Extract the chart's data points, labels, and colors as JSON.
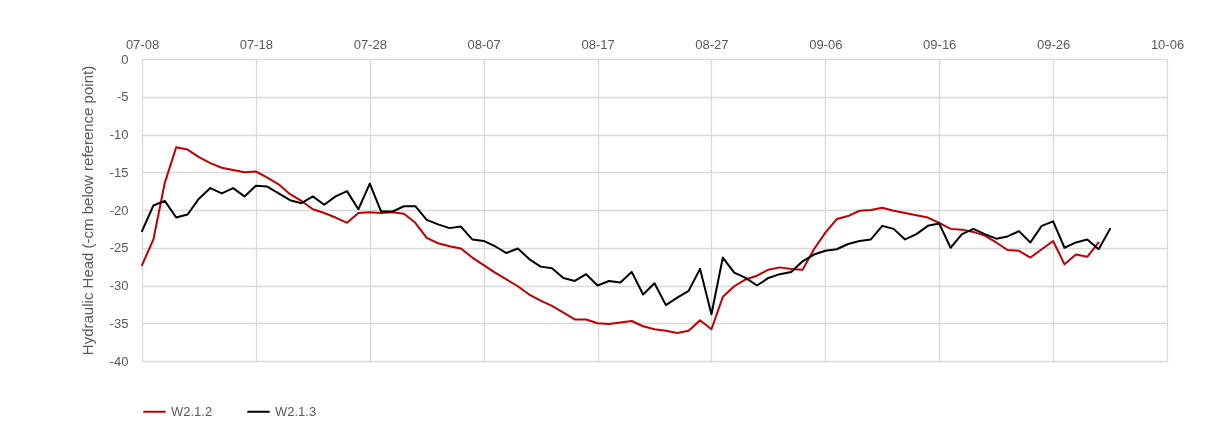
{
  "chart_data": {
    "type": "line",
    "ylabel": "Hydraulic Head (-cm below reference point)",
    "x": [
      "--07-08",
      "--07-09",
      "--07-10",
      "--07-11",
      "--07-12",
      "--07-13",
      "--07-14",
      "--07-15",
      "--07-16",
      "--07-17",
      "--07-18",
      "--07-19",
      "--07-20",
      "--07-21",
      "--07-22",
      "--07-23",
      "--07-24",
      "--07-25",
      "--07-26",
      "--07-27",
      "--07-28",
      "--07-29",
      "--07-30",
      "--07-31",
      "--08-01",
      "--08-02",
      "--08-03",
      "--08-04",
      "--08-05",
      "--08-06",
      "--08-07",
      "--08-08",
      "--08-09",
      "--08-10",
      "--08-11",
      "--08-12",
      "--08-13",
      "--08-14",
      "--08-15",
      "--08-16",
      "--08-17",
      "--08-18",
      "--08-19",
      "--08-20",
      "--08-21",
      "--08-22",
      "--08-23",
      "--08-24",
      "--08-25",
      "--08-26",
      "--08-27",
      "--08-28",
      "--08-29",
      "--08-30",
      "--08-31",
      "--09-01",
      "--09-02",
      "--09-03",
      "--09-04",
      "--09-05",
      "--09-06",
      "--09-07",
      "--09-08",
      "--09-09",
      "--09-10",
      "--09-11",
      "--09-12",
      "--09-13",
      "--09-14",
      "--09-15",
      "--09-16",
      "--09-17",
      "--09-18",
      "--09-19",
      "--09-20",
      "--09-21",
      "--09-22",
      "--09-23",
      "--09-24",
      "--09-25",
      "--09-26",
      "--09-27",
      "--09-28",
      "--09-29",
      "--09-30",
      "--10-01"
    ],
    "series": [
      {
        "name": "W2.1.2",
        "color": "#c00000",
        "values": [
          -27.3,
          -23.9,
          -16.4,
          -11.7,
          -12.0,
          -13.0,
          -13.8,
          -14.4,
          -14.7,
          -15.0,
          -14.9,
          -15.7,
          -16.6,
          -17.9,
          -18.8,
          -19.9,
          -20.4,
          -21.0,
          -21.7,
          -20.4,
          -20.3,
          -20.4,
          -20.3,
          -20.5,
          -21.7,
          -23.7,
          -24.4,
          -24.8,
          -25.1,
          -26.3,
          -27.3,
          -28.3,
          -29.2,
          -30.1,
          -31.2,
          -32.0,
          -32.7,
          -33.6,
          -34.5,
          -34.5,
          -35.0,
          -35.1,
          -34.9,
          -34.7,
          -35.4,
          -35.8,
          -36.0,
          -36.3,
          -36.0,
          -34.6,
          -35.8,
          -31.5,
          -30.1,
          -29.2,
          -28.7,
          -27.9,
          -27.6,
          -27.8,
          -27.9,
          -25.2,
          -23.0,
          -21.2,
          -20.8,
          -20.1,
          -20.0,
          -19.7,
          -20.1,
          -20.4,
          -20.7,
          -21.0,
          -21.7,
          -22.5,
          -22.6,
          -22.9,
          -23.4,
          -24.3,
          -25.3,
          -25.4,
          -26.3,
          -25.2,
          -24.1,
          -27.2,
          -25.9,
          -26.2,
          -24.3,
          null
        ]
      },
      {
        "name": "W2.1.3",
        "color": "#000000",
        "values": [
          -22.8,
          -19.4,
          -18.8,
          -21.0,
          -20.6,
          -18.5,
          -17.1,
          -17.8,
          -17.1,
          -18.2,
          -16.8,
          -16.9,
          -17.8,
          -18.7,
          -19.1,
          -18.2,
          -19.3,
          -18.2,
          -17.5,
          -19.9,
          -16.5,
          -20.2,
          -20.2,
          -19.5,
          -19.5,
          -21.3,
          -21.9,
          -22.4,
          -22.2,
          -23.9,
          -24.1,
          -24.8,
          -25.7,
          -25.1,
          -26.5,
          -27.5,
          -27.7,
          -29.0,
          -29.4,
          -28.5,
          -30.0,
          -29.4,
          -29.6,
          -28.2,
          -31.2,
          -29.7,
          -32.6,
          -31.6,
          -30.7,
          -27.8,
          -33.8,
          -26.3,
          -28.3,
          -29.0,
          -30.0,
          -29.0,
          -28.5,
          -28.2,
          -26.8,
          -25.9,
          -25.4,
          -25.2,
          -24.5,
          -24.1,
          -23.9,
          -22.1,
          -22.5,
          -23.9,
          -23.2,
          -22.1,
          -21.8,
          -25.0,
          -23.2,
          -22.5,
          -23.2,
          -23.8,
          -23.5,
          -22.8,
          -24.3,
          -22.1,
          -21.5,
          -25.0,
          -24.3,
          -23.9,
          -25.2,
          -22.5
        ]
      }
    ],
    "xlim": [
      "--07-08",
      "--10-06"
    ],
    "xticks": [
      {
        "value": "--07-08",
        "label": "07-08"
      },
      {
        "value": "--07-18",
        "label": "07-18"
      },
      {
        "value": "--07-28",
        "label": "07-28"
      },
      {
        "value": "--08-07",
        "label": "08-07"
      },
      {
        "value": "--08-17",
        "label": "08-17"
      },
      {
        "value": "--08-27",
        "label": "08-27"
      },
      {
        "value": "--09-06",
        "label": "09-06"
      },
      {
        "value": "--09-16",
        "label": "09-16"
      },
      {
        "value": "--09-26",
        "label": "09-26"
      },
      {
        "value": "--10-06",
        "label": "10-06"
      }
    ],
    "ylim": [
      -40,
      0
    ],
    "yticks": [
      0,
      -5,
      -10,
      -15,
      -20,
      -25,
      -30,
      -35,
      -40
    ],
    "grid": true,
    "legend": "bottom"
  }
}
